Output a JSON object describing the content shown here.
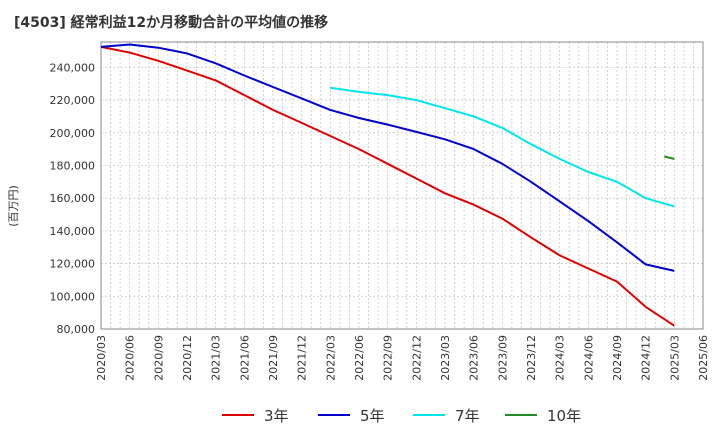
{
  "chart_data": {
    "type": "line",
    "title": "[4503]  経常利益12か月移動合計の平均値の推移",
    "ylabel": "(百万円)",
    "xlabel": "",
    "ylim": [
      80000,
      250000
    ],
    "yticks": [
      "80,000",
      "100,000",
      "120,000",
      "140,000",
      "160,000",
      "180,000",
      "200,000",
      "220,000",
      "240,000"
    ],
    "xticks": [
      "2020/03",
      "2020/06",
      "2020/09",
      "2020/12",
      "2021/03",
      "2021/06",
      "2021/09",
      "2021/12",
      "2022/03",
      "2022/06",
      "2022/09",
      "2022/12",
      "2023/03",
      "2023/06",
      "2023/09",
      "2023/12",
      "2024/03",
      "2024/06",
      "2024/09",
      "2024/12",
      "2025/03",
      "2025/06"
    ],
    "x": [
      "2020/03",
      "2020/06",
      "2020/09",
      "2020/12",
      "2021/03",
      "2021/06",
      "2021/09",
      "2021/12",
      "2022/03",
      "2022/06",
      "2022/09",
      "2022/12",
      "2023/03",
      "2023/06",
      "2023/09",
      "2023/12",
      "2024/03",
      "2024/06",
      "2024/09",
      "2024/12",
      "2025/03"
    ],
    "grid": true,
    "legend_position": "bottom",
    "series": [
      {
        "name": "3年",
        "color": "#dd0000",
        "values": [
          252500,
          249000,
          244000,
          238000,
          232000,
          223000,
          214000,
          206000,
          198000,
          190000,
          181000,
          172000,
          163000,
          156000,
          147500,
          136000,
          125000,
          117000,
          109000,
          93500,
          82000
        ]
      },
      {
        "name": "5年",
        "color": "#0000cc",
        "values": [
          252500,
          254000,
          252000,
          248500,
          242500,
          235000,
          228000,
          221000,
          214000,
          209000,
          205000,
          200500,
          196000,
          190000,
          181000,
          170000,
          158000,
          146000,
          133000,
          119500,
          115500
        ]
      },
      {
        "name": "7年",
        "color": "#00e5ee",
        "values": [
          null,
          null,
          null,
          null,
          null,
          null,
          null,
          null,
          227500,
          225000,
          223000,
          220000,
          215000,
          210000,
          203000,
          193000,
          184000,
          176000,
          170000,
          160000,
          155000
        ]
      },
      {
        "name": "10年",
        "color": "#228b22",
        "values": [
          null,
          null,
          null,
          null,
          null,
          null,
          null,
          null,
          null,
          null,
          null,
          null,
          null,
          null,
          null,
          null,
          null,
          null,
          null,
          null,
          184000
        ]
      }
    ],
    "series_extra": {
      "10年_start": 185500
    }
  }
}
